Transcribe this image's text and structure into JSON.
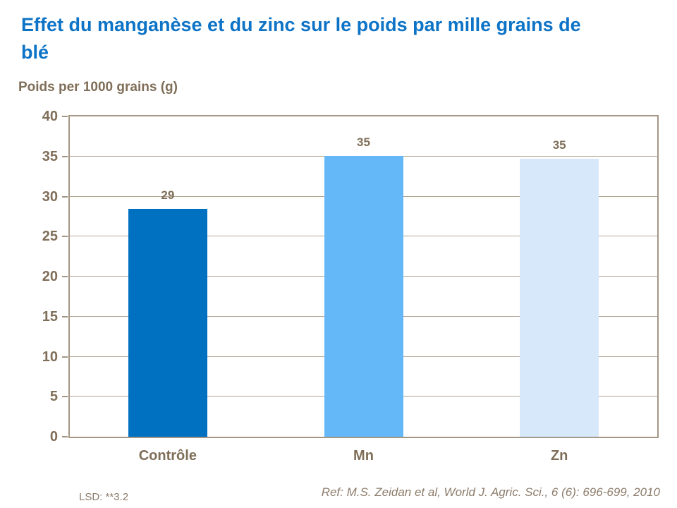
{
  "title": "Effet du manganèse et du zinc sur le poids par mille grains de blé",
  "axis_title": "Poids per 1000 grains (g)",
  "footnote_left": "LSD: **3.2",
  "footnote_right": "Ref: M.S. Zeidan et al, World J. Agric. Sci., 6 (6): 696-699, 2010",
  "colors": {
    "title_blue": "#0D73C6",
    "text_brown": "#7F6E58",
    "text_brown_light": "#8C7C6B",
    "axis_border": "#A39685",
    "gridline": "#B3A795",
    "bar_controle": "#0070C0",
    "bar_mn": "#64B8F7",
    "bar_zn": "#D7E8FB"
  },
  "chart_data": {
    "type": "bar",
    "title": "Effet du manganèse et du zinc sur le poids par mille grains de blé",
    "ylabel": "Poids per 1000 grains (g)",
    "xlabel": "",
    "categories": [
      "Contrôle",
      "Mn",
      "Zn"
    ],
    "values": [
      29,
      35,
      35
    ],
    "data_labels": [
      "29",
      "35",
      "35"
    ],
    "display_heights": [
      28.5,
      35.1,
      34.7
    ],
    "bar_colors": [
      "#0070C0",
      "#64B8F7",
      "#D7E8FB"
    ],
    "ylim": [
      0,
      40
    ],
    "yticks": [
      0,
      5,
      10,
      15,
      20,
      25,
      30,
      35,
      40
    ],
    "grid": true,
    "legend": false,
    "annotations": [
      "LSD: **3.2",
      "Ref: M.S. Zeidan et al, World J. Agric. Sci., 6 (6): 696-699, 2010"
    ]
  }
}
